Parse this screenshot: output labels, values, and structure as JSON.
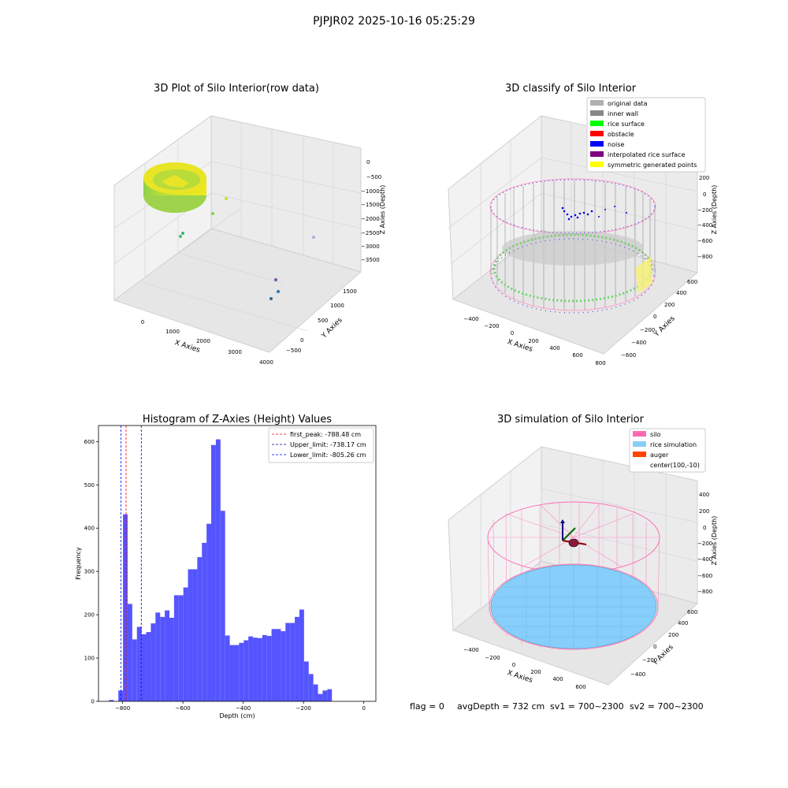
{
  "figure": {
    "suptitle": "PJPJR02 2025-10-16 05:25:29",
    "footer": {
      "flag": "flag = 0",
      "avg": "avgDepth = 732 cm",
      "sv1": "sv1 = 700~2300",
      "sv2": "sv2 = 700~2300"
    }
  },
  "colors": {
    "hist_bar": "#4c4cff",
    "first_peak": "#ff0000",
    "upper_limit": "#0000aa",
    "lower_limit": "#0000ff",
    "silo": "#ff69b4",
    "rice": "#87cefa",
    "auger": "#ff4500",
    "original": "#b0b0b0",
    "inner_wall": "#888888",
    "rice_surface": "#00ff00",
    "obstacle": "#ff0000",
    "noise": "#0000ff",
    "interp": "#800080",
    "symmetric": "#ffff00"
  },
  "chart_data": [
    {
      "type": "scatter3d",
      "title": "3D Plot of Silo Interior(row data)",
      "xlabel": "X Axies",
      "ylabel": "Y Axies",
      "zlabel": "Z Axies (Depth)",
      "xticks": [
        "0",
        "1000",
        "2000",
        "3000",
        "4000"
      ],
      "yticks": [
        "−500",
        "0",
        "500",
        "1000",
        "1500"
      ],
      "zticks": [
        "0",
        "−500",
        "−1000",
        "−1500",
        "−2000",
        "−2500",
        "−3000",
        "−3500"
      ],
      "xlim": [
        -500,
        4000
      ],
      "ylim": [
        -700,
        1800
      ],
      "zlim": [
        -3700,
        100
      ]
    },
    {
      "type": "scatter3d",
      "title": "3D classify of Silo Interior",
      "xlabel": "X Axies",
      "ylabel": "Y Axies",
      "zlabel": "Z Axies (Depth)",
      "xticks": [
        "−400",
        "−200",
        "0",
        "200",
        "400",
        "600",
        "800"
      ],
      "yticks": [
        "−600",
        "−400",
        "−200",
        "0",
        "200",
        "400",
        "600"
      ],
      "zticks": [
        "200",
        "0",
        "−200",
        "−400",
        "−600",
        "−800"
      ],
      "legend_position": "top-right",
      "legend": [
        {
          "label": "original data",
          "color_key": "original"
        },
        {
          "label": "inner wall",
          "color_key": "inner_wall"
        },
        {
          "label": "rice surface",
          "color_key": "rice_surface"
        },
        {
          "label": "obstacle",
          "color_key": "obstacle"
        },
        {
          "label": "noise",
          "color_key": "noise"
        },
        {
          "label": "interpolated rice surface",
          "color_key": "interp"
        },
        {
          "label": "symmetric generated points",
          "color_key": "symmetric"
        }
      ]
    },
    {
      "type": "bar",
      "title": "Histogram of Z-Axies (Height) Values",
      "xlabel": "Depth (cm)",
      "ylabel": "Frequency",
      "xlim": [
        -880,
        40
      ],
      "ylim": [
        0,
        637
      ],
      "xticks": [
        -800,
        -600,
        -400,
        -200,
        0
      ],
      "yticks": [
        0,
        100,
        200,
        300,
        400,
        500,
        600
      ],
      "x0": -845,
      "bin_width": 15.4,
      "values": [
        3,
        0,
        25,
        432,
        225,
        143,
        172,
        155,
        160,
        180,
        205,
        195,
        210,
        193,
        245,
        245,
        263,
        305,
        305,
        333,
        366,
        410,
        592,
        605,
        440,
        152,
        130,
        130,
        135,
        141,
        150,
        147,
        146,
        153,
        151,
        167,
        167,
        162,
        181,
        181,
        195,
        212,
        92,
        63,
        39,
        17,
        25,
        28
      ],
      "legend_position": "top-right",
      "vlines": [
        {
          "label": "first_peak: -788.48 cm",
          "x": -788.48,
          "color_key": "first_peak"
        },
        {
          "label": "Upper_limit: -738.17 cm",
          "x": -738.17,
          "color_key": "upper_limit"
        },
        {
          "label": "Lower_limit: -805.26 cm",
          "x": -805.26,
          "color_key": "lower_limit"
        }
      ]
    },
    {
      "type": "surface3d",
      "title": "3D simulation of Silo Interior",
      "xlabel": "X Axies",
      "ylabel": "Y Axies",
      "zlabel": "Z Axies (Depth)",
      "xticks": [
        "−400",
        "−200",
        "0",
        "200",
        "400",
        "600"
      ],
      "yticks": [
        "−400",
        "−200",
        "0",
        "200",
        "400",
        "600"
      ],
      "zticks": [
        "400",
        "200",
        "0",
        "−200",
        "−400",
        "−600",
        "−800"
      ],
      "legend_position": "top-right",
      "legend": [
        {
          "label": "silo",
          "color_key": "silo"
        },
        {
          "label": "rice simulation",
          "color_key": "rice"
        },
        {
          "label": "auger",
          "color_key": "auger"
        },
        {
          "label": "center(100,-10)",
          "color_key": ""
        }
      ]
    }
  ]
}
